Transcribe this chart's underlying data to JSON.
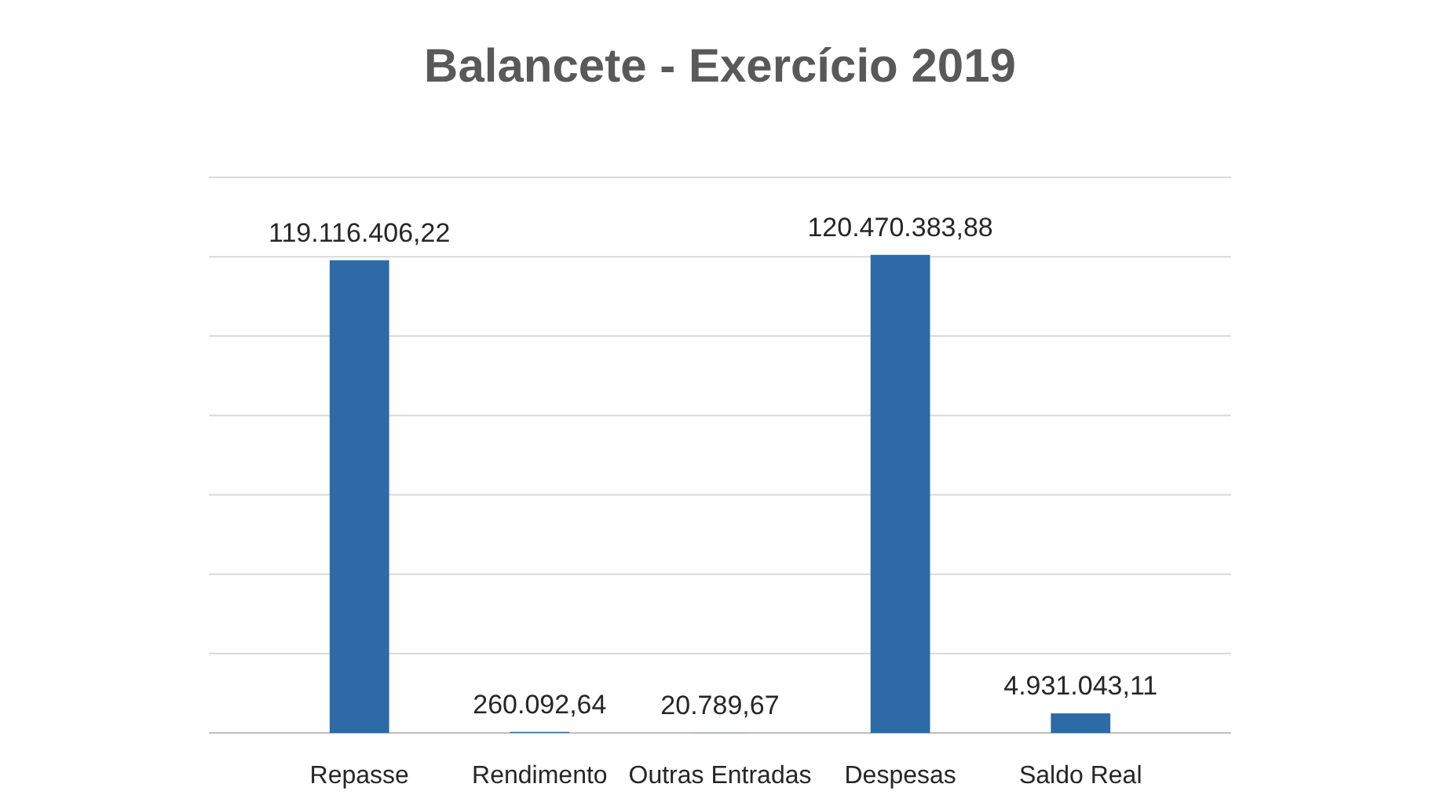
{
  "chart_data": {
    "type": "bar",
    "title": "Balancete - Exercício 2019",
    "categories": [
      "Repasse",
      "Rendimento",
      "Outras Entradas",
      "Despesas",
      "Saldo Real"
    ],
    "values": [
      119116406.22,
      260092.64,
      20789.67,
      120470383.88,
      4931043.11
    ],
    "value_labels": [
      "119.116.406,22",
      "260.092,64",
      "20.789,67",
      "120.470.383,88",
      "4.931.043,11"
    ],
    "color": "#2e6aa6",
    "ylim": [
      0,
      140000000
    ],
    "yticks": [
      {
        "value": 0,
        "label": null
      },
      {
        "value": 20000000,
        "label": null
      },
      {
        "value": 40000000,
        "label": null
      },
      {
        "value": 60000000,
        "label": null
      },
      {
        "value": 80000000,
        "label": null
      },
      {
        "value": 100000000,
        "label": null
      },
      {
        "value": 120000000,
        "label": null
      },
      {
        "value": 140000000,
        "label": null
      }
    ],
    "tick_labels": "x",
    "grid": "y"
  }
}
